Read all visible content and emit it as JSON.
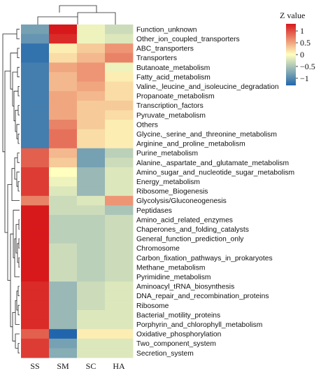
{
  "chart_data": {
    "type": "heatmap",
    "legend_title": "Z value",
    "legend_ticks": [
      1,
      0.5,
      0,
      -0.5,
      -1
    ],
    "legend_tick_labels": [
      "1",
      "0.5",
      "0",
      "−0.5",
      "−1"
    ],
    "zlim": [
      -1.3,
      1.3
    ],
    "colors": {
      "low": "#2166ac",
      "mid": "#ffffbf",
      "high": "#d7191c"
    },
    "columns": [
      "SS",
      "SM",
      "SC",
      "HA"
    ],
    "rows": [
      "Function_unknown",
      "Other_ion_coupled_transporters",
      "ABC_transporters",
      "Transporters",
      "Butanoate_metabolism",
      "Fatty_acid_metabolism",
      "Valine,_leucine_and_isoleucine_degradation",
      "Propanoate_metabolism",
      "Transcription_factors",
      "Pyruvate_metabolism",
      "Others",
      "Glycine,_serine_and_threonine_metabolism",
      "Arginine_and_proline_metabolism",
      "Purine_metabolism",
      "Alanine,_aspartate_and_glutamate_metabolism",
      "Amino_sugar_and_nucleotide_sugar_metabolism",
      "Energy_metabolism",
      "Ribosome_Biogenesis",
      "Glycolysis/Gluconeogenesis",
      "Peptidases",
      "Amino_acid_related_enzymes",
      "Chaperones_and_folding_catalysts",
      "General_function_prediction_only",
      "Chromosome",
      "Carbon_fixation_pathways_in_prokaryotes",
      "Methane_metabolism",
      "Pyrimidine_metabolism",
      "Aminoacyl_tRNA_biosynthesis",
      "DNA_repair_and_recombination_proteins",
      "Ribosome",
      "Bacterial_motility_proteins",
      "Porphyrin_and_chlorophyll_metabolism",
      "Oxidative_phosphorylation",
      "Two_component_system",
      "Secretion_system"
    ],
    "values": [
      [
        -0.8,
        1.3,
        -0.1,
        -0.3
      ],
      [
        -0.9,
        1.2,
        -0.1,
        -0.2
      ],
      [
        -1.2,
        0.1,
        0.3,
        0.6
      ],
      [
        -1.2,
        0.2,
        0.4,
        0.7
      ],
      [
        -1.1,
        0.5,
        0.6,
        -0.1
      ],
      [
        -1.1,
        0.4,
        0.6,
        0.1
      ],
      [
        -1.1,
        0.4,
        0.5,
        0.2
      ],
      [
        -1.1,
        0.5,
        0.4,
        0.2
      ],
      [
        -1.1,
        0.5,
        0.3,
        0.3
      ],
      [
        -1.1,
        0.5,
        0.3,
        0.2
      ],
      [
        -1.1,
        0.7,
        0.3,
        0.1
      ],
      [
        -1.1,
        0.8,
        0.2,
        0.1
      ],
      [
        -1.1,
        0.8,
        0.2,
        0.1
      ],
      [
        0.9,
        0.4,
        -0.8,
        -0.4
      ],
      [
        0.9,
        0.3,
        -0.8,
        -0.3
      ],
      [
        1.1,
        0.0,
        -0.6,
        -0.2
      ],
      [
        1.1,
        -0.1,
        -0.6,
        -0.2
      ],
      [
        1.1,
        -0.2,
        -0.6,
        -0.2
      ],
      [
        0.7,
        -0.3,
        -0.2,
        0.6
      ],
      [
        1.3,
        -0.3,
        -0.3,
        -0.5
      ],
      [
        1.3,
        -0.4,
        -0.4,
        -0.3
      ],
      [
        1.3,
        -0.4,
        -0.4,
        -0.3
      ],
      [
        1.3,
        -0.4,
        -0.4,
        -0.3
      ],
      [
        1.3,
        -0.3,
        -0.4,
        -0.3
      ],
      [
        1.3,
        -0.3,
        -0.4,
        -0.3
      ],
      [
        1.3,
        -0.3,
        -0.4,
        -0.3
      ],
      [
        1.3,
        -0.3,
        -0.4,
        -0.3
      ],
      [
        1.2,
        -0.6,
        -0.3,
        -0.2
      ],
      [
        1.2,
        -0.6,
        -0.3,
        -0.2
      ],
      [
        1.2,
        -0.6,
        -0.3,
        -0.2
      ],
      [
        1.2,
        -0.6,
        -0.2,
        -0.2
      ],
      [
        1.2,
        -0.6,
        -0.2,
        -0.2
      ],
      [
        0.9,
        -1.3,
        0.1,
        0.1
      ],
      [
        1.1,
        -0.8,
        -0.2,
        -0.2
      ],
      [
        1.1,
        -0.7,
        -0.2,
        -0.2
      ]
    ]
  }
}
